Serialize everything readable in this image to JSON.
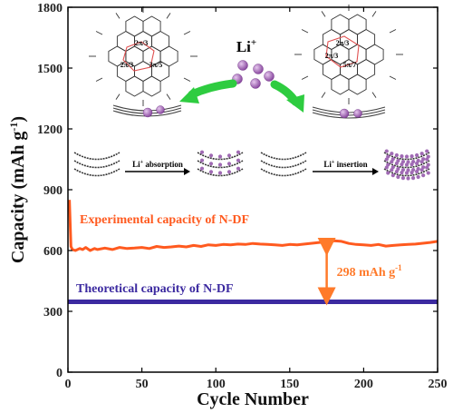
{
  "chart_data": {
    "type": "line",
    "xlabel": "Cycle Number",
    "ylabel": "Capacity (mAh g",
    "ylabel_sup": "-1",
    "ylabel_close": ")",
    "xlim": [
      0,
      250
    ],
    "ylim": [
      0,
      1800
    ],
    "xticks": [
      0,
      50,
      100,
      150,
      200,
      250
    ],
    "yticks": [
      0,
      300,
      600,
      900,
      1200,
      1500,
      1800
    ],
    "grid": false,
    "series": [
      {
        "name": "Experimental capacity of N-DF",
        "color": "#ff5a1f",
        "points": [
          [
            1,
            850
          ],
          [
            2,
            620
          ],
          [
            3,
            605
          ],
          [
            5,
            600
          ],
          [
            8,
            610
          ],
          [
            10,
            605
          ],
          [
            12,
            615
          ],
          [
            15,
            600
          ],
          [
            18,
            610
          ],
          [
            20,
            605
          ],
          [
            25,
            612
          ],
          [
            30,
            605
          ],
          [
            35,
            615
          ],
          [
            40,
            610
          ],
          [
            45,
            612
          ],
          [
            50,
            615
          ],
          [
            55,
            610
          ],
          [
            60,
            620
          ],
          [
            65,
            615
          ],
          [
            70,
            618
          ],
          [
            75,
            622
          ],
          [
            80,
            618
          ],
          [
            85,
            625
          ],
          [
            90,
            620
          ],
          [
            95,
            628
          ],
          [
            100,
            625
          ],
          [
            105,
            630
          ],
          [
            110,
            628
          ],
          [
            115,
            632
          ],
          [
            120,
            630
          ],
          [
            125,
            635
          ],
          [
            130,
            632
          ],
          [
            135,
            630
          ],
          [
            140,
            628
          ],
          [
            145,
            625
          ],
          [
            150,
            630
          ],
          [
            155,
            628
          ],
          [
            160,
            632
          ],
          [
            165,
            636
          ],
          [
            170,
            640
          ],
          [
            175,
            642
          ],
          [
            180,
            648
          ],
          [
            185,
            645
          ],
          [
            190,
            635
          ],
          [
            195,
            630
          ],
          [
            200,
            628
          ],
          [
            205,
            625
          ],
          [
            210,
            630
          ],
          [
            215,
            622
          ],
          [
            220,
            625
          ],
          [
            225,
            628
          ],
          [
            230,
            630
          ],
          [
            235,
            632
          ],
          [
            240,
            636
          ],
          [
            245,
            640
          ],
          [
            250,
            645
          ]
        ]
      },
      {
        "name": "Theoretical capacity of N-DF",
        "color": "#3c2aa0",
        "points": [
          [
            0,
            347
          ],
          [
            250,
            347
          ]
        ]
      }
    ],
    "annotation": {
      "text": "298 mAh g",
      "sup": "-1",
      "x": 175,
      "y_from": 347,
      "y_to": 645,
      "color": "#ff7a2a"
    }
  },
  "inset": {
    "li_label": "Li",
    "li_sup": "+",
    "left_angles": [
      "2π/3",
      "2π/3",
      "3π/5"
    ],
    "right_angles": [
      "2π/3",
      "2π/3",
      "5π/7"
    ],
    "absorption_label": "Li",
    "absorption_sup": "+",
    "absorption_text": " absorption",
    "insertion_label": "Li",
    "insertion_sup": "+",
    "insertion_text": " insertion",
    "sphere_color": "#a06ab4",
    "arrow_color": "#2ecc40"
  }
}
